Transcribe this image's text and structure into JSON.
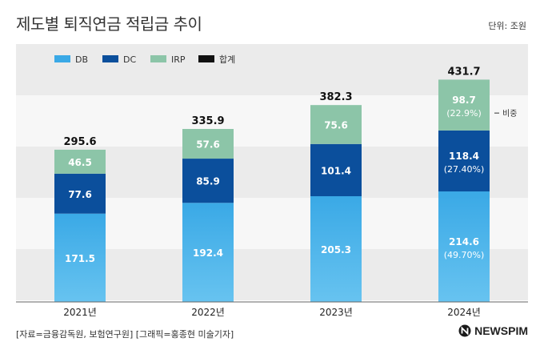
{
  "title": "제도별 퇴직연금 적립금 추이",
  "unit": "단위: 조원",
  "source": "[자료=금융감독원, 보험연구원] [그래픽=홍종현 미술기자]",
  "logo": "NEWSPIM",
  "annotation": "비중",
  "colors": {
    "DB": "#3aa9e6",
    "DC": "#0b4f9c",
    "IRP": "#8cc5a8",
    "total": "#111111"
  },
  "chart_data": {
    "type": "bar",
    "stacked": true,
    "categories": [
      "2021년",
      "2022년",
      "2023년",
      "2024년"
    ],
    "series": [
      {
        "name": "DB",
        "values": [
          171.5,
          192.4,
          205.3,
          214.6
        ],
        "value_labels": [
          "171.5",
          "192.4",
          "205.3",
          "214.6"
        ],
        "share_labels": [
          "",
          "",
          "",
          "(49.70%)"
        ]
      },
      {
        "name": "DC",
        "values": [
          77.6,
          85.9,
          101.4,
          118.4
        ],
        "value_labels": [
          "77.6",
          "85.9",
          "101.4",
          "118.4"
        ],
        "share_labels": [
          "",
          "",
          "",
          "(27.40%)"
        ]
      },
      {
        "name": "IRP",
        "values": [
          46.5,
          57.6,
          75.6,
          98.7
        ],
        "value_labels": [
          "46.5",
          "57.6",
          "75.6",
          "98.7"
        ],
        "share_labels": [
          "",
          "",
          "",
          "(22.9%)"
        ]
      }
    ],
    "totals": [
      295.6,
      335.9,
      382.3,
      431.7
    ],
    "total_labels": [
      "295.6",
      "335.9",
      "382.3",
      "431.7"
    ],
    "legend": [
      "DB",
      "DC",
      "IRP",
      "합계"
    ],
    "legend_position": "top-left",
    "grid": "alternating bands"
  }
}
